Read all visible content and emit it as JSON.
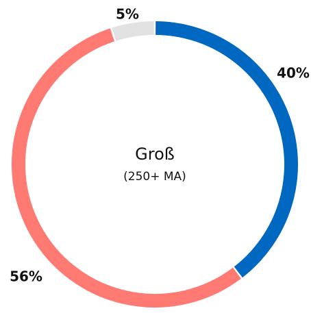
{
  "chart_data": {
    "type": "donut",
    "title": "Groß",
    "subtitle": "(250+ MA)",
    "categories": [
      null,
      null,
      null
    ],
    "values": [
      40,
      56,
      5
    ],
    "value_labels": [
      "40%",
      "56%",
      "5%"
    ],
    "colors": [
      "#0068c0",
      "#ff7a72",
      "#e1e1e1"
    ]
  }
}
